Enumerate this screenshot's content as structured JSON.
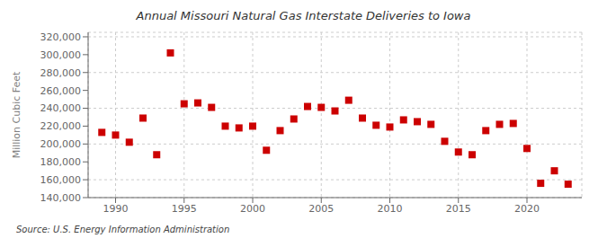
{
  "chart_data": {
    "type": "scatter",
    "title": "Annual Missouri Natural Gas Interstate Deliveries to Iowa",
    "ylabel": "Million Cubic Feet",
    "source": "Source: U.S. Energy Information Administration",
    "x": [
      1989,
      1990,
      1991,
      1992,
      1993,
      1994,
      1995,
      1996,
      1997,
      1998,
      1999,
      2000,
      2001,
      2002,
      2003,
      2004,
      2005,
      2006,
      2007,
      2008,
      2009,
      2010,
      2011,
      2012,
      2013,
      2014,
      2015,
      2016,
      2017,
      2018,
      2019,
      2020,
      2021,
      2022,
      2023
    ],
    "values": [
      213000,
      210000,
      202000,
      229000,
      188000,
      302000,
      245000,
      246000,
      241000,
      220000,
      218000,
      220000,
      193000,
      215000,
      228000,
      242000,
      241000,
      237000,
      249000,
      229000,
      221000,
      219000,
      227000,
      225000,
      222000,
      203000,
      191000,
      188000,
      215000,
      222000,
      223000,
      195000,
      156000,
      170000,
      155000
    ],
    "color": "#cc0000",
    "marker": "square",
    "xlim": [
      1988,
      2024
    ],
    "xticks": [
      1990,
      1995,
      2000,
      2005,
      2010,
      2015,
      2020
    ],
    "ylim": [
      140000,
      325000
    ],
    "yticks": [
      {
        "value": 140000,
        "label": "140,000"
      },
      {
        "value": 160000,
        "label": "160,000"
      },
      {
        "value": 180000,
        "label": "180,000"
      },
      {
        "value": 200000,
        "label": "200,000"
      },
      {
        "value": 220000,
        "label": "220,000"
      },
      {
        "value": 240000,
        "label": "240,000"
      },
      {
        "value": 260000,
        "label": "260,000"
      },
      {
        "value": 280000,
        "label": "280,000"
      },
      {
        "value": 300000,
        "label": "300,000"
      },
      {
        "value": 320000,
        "label": "320,000"
      }
    ],
    "grid": true
  }
}
